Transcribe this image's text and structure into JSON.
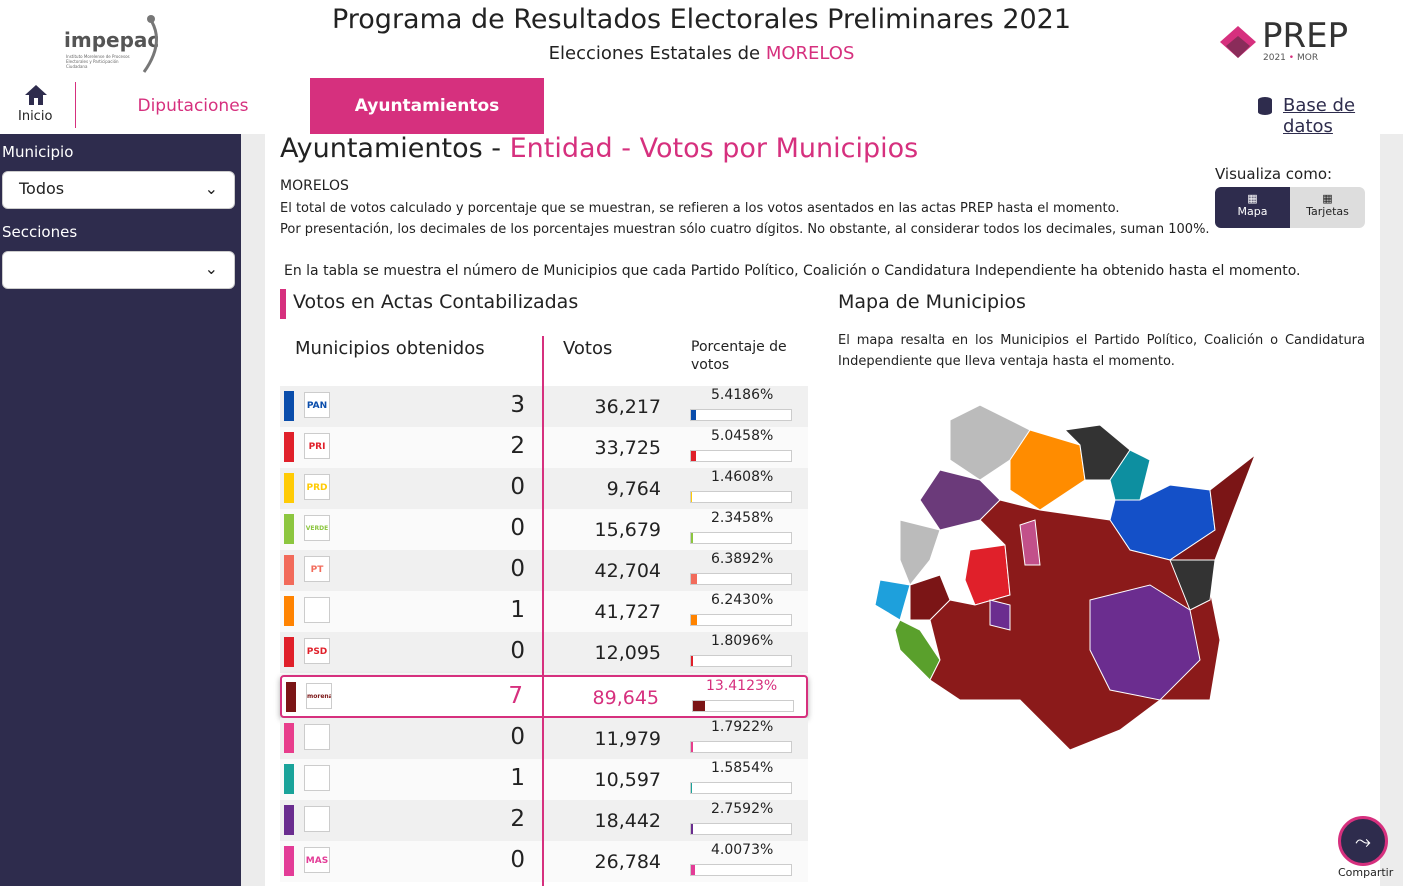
{
  "header": {
    "logo": "impepac",
    "logo_caption": "Instituto Morelense de Procesos Electorales y Participación Ciudadana",
    "title": "Programa de Resultados Electorales Preliminares 2021",
    "subtitle": "Elecciones Estatales de",
    "subtitle_state": "MORELOS",
    "prep": "PREP",
    "prep_year": "2021",
    "prep_state": "MOR"
  },
  "nav": {
    "home": "Inicio",
    "tabs": [
      "Diputaciones",
      "Ayuntamientos"
    ],
    "active_tab": 1,
    "database": "Base de datos"
  },
  "sidebar": {
    "municipio_label": "Municipio",
    "municipio_value": "Todos",
    "secciones_label": "Secciones"
  },
  "main": {
    "title": "Ayuntamientos -",
    "title_highlight": "Entidad - Votos por Municipios",
    "state": "MORELOS",
    "notes": [
      "El total de votos calculado y porcentaje que se muestran, se refieren a los votos asentados en las actas PREP hasta el momento.",
      "Por presentación, los decimales de los porcentajes muestran sólo cuatro dígitos. No obstante, al considerar todos los decimales, suman 100%."
    ],
    "view_label": "Visualiza como:",
    "view_options": [
      "Mapa",
      "Tarjetas"
    ],
    "table_note": "En la tabla se muestra el número de Municipios que cada Partido Político, Coalición o Candidatura Independiente ha obtenido hasta el momento.",
    "table_title": "Votos en Actas Contabilizadas",
    "columns": [
      "Municipios obtenidos",
      "Votos",
      "Porcentaje de votos"
    ],
    "rows": [
      {
        "logo": "PAN",
        "color": "#0a4dab",
        "municipios": "3",
        "votos": "36,217",
        "percent": {
          "value": 5.4186,
          "label": "5.4186%"
        }
      },
      {
        "logo": "PRI",
        "color": "#e0202a",
        "municipios": "2",
        "votos": "33,725",
        "percent": {
          "value": 5.0458,
          "label": "5.0458%"
        }
      },
      {
        "logo": "PRD",
        "color": "#ffcb05",
        "municipios": "0",
        "votos": "9,764",
        "percent": {
          "value": 1.4608,
          "label": "1.4608%"
        }
      },
      {
        "logo": "VERDE",
        "color": "#8cc63f",
        "municipios": "0",
        "votos": "15,679",
        "percent": {
          "value": 2.3458,
          "label": "2.3458%"
        }
      },
      {
        "logo": "PT",
        "color": "#f26b5b",
        "municipios": "0",
        "votos": "42,704",
        "percent": {
          "value": 6.3892,
          "label": "6.3892%"
        }
      },
      {
        "color": "#ff8300",
        "municipios": "1",
        "votos": "41,727",
        "percent": {
          "value": 6.243,
          "label": "6.2430%"
        }
      },
      {
        "logo": "PSD",
        "color": "#e0202a",
        "municipios": "0",
        "votos": "12,095",
        "percent": {
          "value": 1.8096,
          "label": "1.8096%"
        }
      },
      {
        "logo": "morena",
        "color": "#7b1516",
        "municipios": "7",
        "votos": "89,645",
        "percent": {
          "value": 13.4123,
          "label": "13.4123%"
        },
        "highlight": true
      },
      {
        "color": "#e83e8c",
        "municipios": "0",
        "votos": "11,979",
        "percent": {
          "value": 1.7922,
          "label": "1.7922%"
        }
      },
      {
        "color": "#1aa39a",
        "municipios": "1",
        "votos": "10,597",
        "percent": {
          "value": 1.5854,
          "label": "1.5854%"
        }
      },
      {
        "color": "#6a2d8f",
        "municipios": "2",
        "votos": "18,442",
        "percent": {
          "value": 2.7592,
          "label": "2.7592%"
        }
      },
      {
        "logo": "MAS",
        "color": "#e33c97",
        "municipios": "0",
        "votos": "26,784",
        "percent": {
          "value": 4.0073,
          "label": "4.0073%"
        }
      }
    ],
    "map_title": "Mapa de Municipios",
    "map_text": "El mapa resalta en los Municipios el Partido Político, Coalición o Candidatura Independiente que lleva ventaja hasta el momento.",
    "share": "Compartir"
  }
}
